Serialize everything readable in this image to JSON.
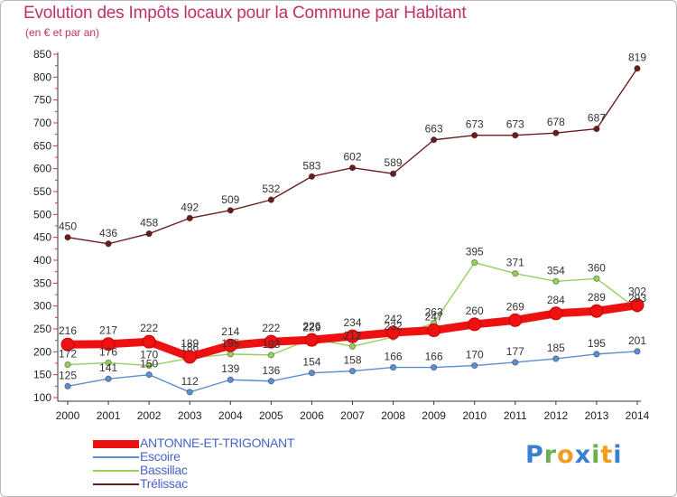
{
  "title": "Evolution des Impôts locaux pour la Commune par Habitant",
  "subtitle": "(en € et par an)",
  "brand": {
    "letters": [
      "P",
      "r",
      "o",
      "x",
      "i",
      "t",
      "i"
    ],
    "colors": [
      "#3a7fd0",
      "#6ab04c",
      "#f29b1d",
      "#3a7fd0",
      "#6ab04c",
      "#f29b1d",
      "#3a7fd0"
    ]
  },
  "chart_data": {
    "type": "line",
    "title": "Evolution des Impôts locaux pour la Commune par Habitant",
    "subtitle": "(en € et par an)",
    "xlabel": "",
    "ylabel": "",
    "x": [
      "2000",
      "2001",
      "2002",
      "2003",
      "2004",
      "2005",
      "2006",
      "2007",
      "2008",
      "2009",
      "2010",
      "2011",
      "2012",
      "2013",
      "2014"
    ],
    "ylim": [
      100,
      850
    ],
    "yticks": [
      100,
      150,
      200,
      250,
      300,
      350,
      400,
      450,
      500,
      550,
      600,
      650,
      700,
      750,
      800,
      850
    ],
    "grid": false,
    "legend_position": "bottom-left",
    "series": [
      {
        "name": "ANTONNE-ET-TRIGONANT",
        "color": "#ee1111",
        "emphasis": true,
        "values": [
          216,
          217,
          222,
          189,
          214,
          222,
          226,
          234,
          242,
          247,
          260,
          269,
          284,
          289,
          302
        ]
      },
      {
        "name": "Escoire",
        "color": "#5b8fd0",
        "emphasis": false,
        "values": [
          125,
          141,
          150,
          112,
          139,
          136,
          154,
          158,
          166,
          166,
          170,
          177,
          185,
          195,
          201
        ]
      },
      {
        "name": "Bassillac",
        "color": "#96d05c",
        "emphasis": false,
        "values": [
          172,
          176,
          170,
          186,
          195,
          193,
          229,
          212,
          232,
          263,
          395,
          371,
          354,
          360,
          293
        ]
      },
      {
        "name": "Trélissac",
        "color": "#6b1c1c",
        "emphasis": false,
        "values": [
          450,
          436,
          458,
          492,
          509,
          532,
          583,
          602,
          589,
          663,
          673,
          673,
          678,
          687,
          819
        ]
      }
    ]
  }
}
